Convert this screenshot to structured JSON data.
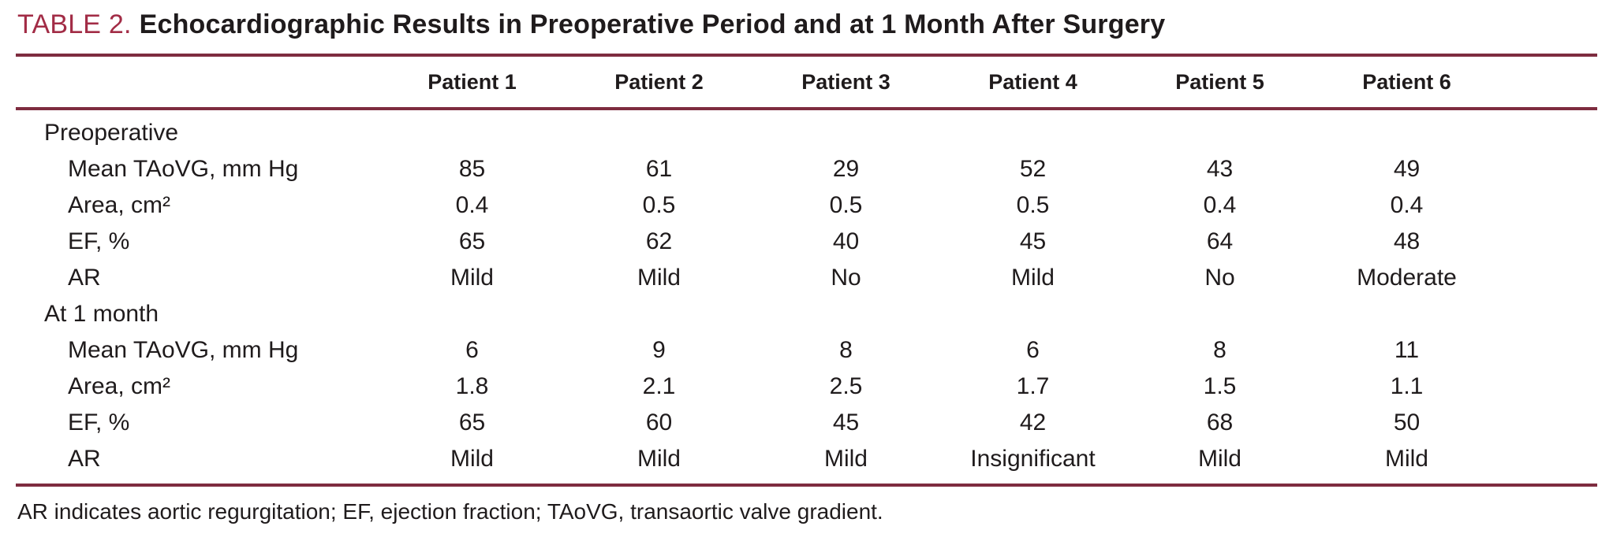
{
  "title": {
    "label": "TABLE 2.",
    "text": "Echocardiographic Results in Preoperative Period and at 1 Month After Surgery"
  },
  "columns": [
    "Patient 1",
    "Patient 2",
    "Patient 3",
    "Patient 4",
    "Patient 5",
    "Patient 6"
  ],
  "sections": [
    {
      "name": "Preoperative",
      "rows": [
        {
          "label": "Mean TAoVG, mm Hg",
          "values": [
            "85",
            "61",
            "29",
            "52",
            "43",
            "49"
          ]
        },
        {
          "label": "Area, cm²",
          "values": [
            "0.4",
            "0.5",
            "0.5",
            "0.5",
            "0.4",
            "0.4"
          ]
        },
        {
          "label": "EF, %",
          "values": [
            "65",
            "62",
            "40",
            "45",
            "64",
            "48"
          ]
        },
        {
          "label": "AR",
          "values": [
            "Mild",
            "Mild",
            "No",
            "Mild",
            "No",
            "Moderate"
          ]
        }
      ]
    },
    {
      "name": "At 1 month",
      "rows": [
        {
          "label": "Mean TAoVG, mm Hg",
          "values": [
            "6",
            "9",
            "8",
            "6",
            "8",
            "11"
          ]
        },
        {
          "label": "Area, cm²",
          "values": [
            "1.8",
            "2.1",
            "2.5",
            "1.7",
            "1.5",
            "1.1"
          ]
        },
        {
          "label": "EF, %",
          "values": [
            "65",
            "60",
            "45",
            "42",
            "68",
            "50"
          ]
        },
        {
          "label": "AR",
          "values": [
            "Mild",
            "Mild",
            "Mild",
            "Insignificant",
            "Mild",
            "Mild"
          ]
        }
      ]
    }
  ],
  "footnote": "AR indicates aortic regurgitation; EF, ejection fraction; TAoVG, transaortic valve gradient.",
  "colors": {
    "accent": "#a22c46",
    "rule": "#7e2c3f",
    "text": "#1f1b1c"
  }
}
